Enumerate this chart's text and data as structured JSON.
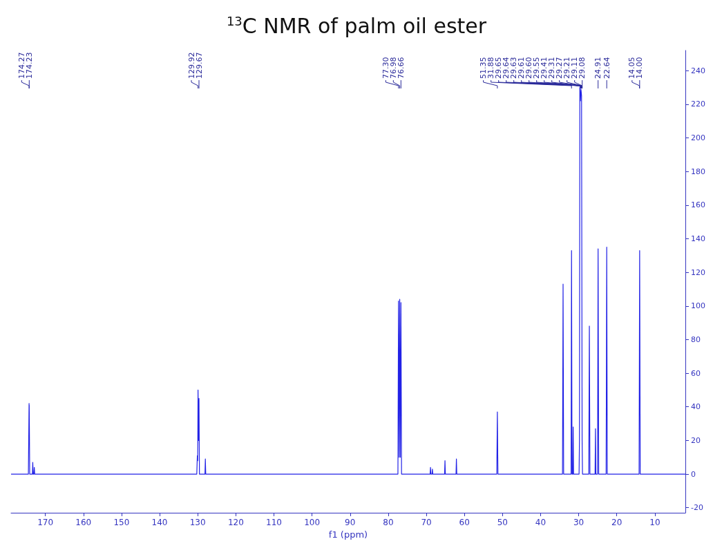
{
  "chart_data": {
    "type": "line",
    "title": "$^{13}$C NMR of palm oil ester",
    "xlabel": "f1 (ppm)",
    "color": "#2222e6",
    "x": [
      179,
      174.45,
      174.27,
      174.25,
      174.23,
      174.1,
      173.4,
      173.3,
      173.2,
      173.0,
      172.9,
      172.8,
      130.25,
      130.1,
      130.0,
      129.92,
      129.8,
      129.67,
      129.55,
      128.1,
      128.0,
      127.9,
      77.45,
      77.3,
      77.14,
      76.98,
      76.82,
      76.66,
      76.5,
      69.0,
      68.9,
      68.8,
      68.5,
      68.4,
      68.3,
      65.2,
      65.1,
      65.0,
      62.2,
      62.1,
      62.0,
      51.5,
      51.35,
      51.2,
      34.25,
      34.1,
      33.95,
      32.0,
      31.88,
      31.75,
      31.55,
      31.45,
      31.35,
      29.9,
      29.8,
      29.7,
      29.55,
      29.4,
      29.25,
      29.1,
      29.0,
      27.35,
      27.2,
      27.05,
      25.7,
      25.6,
      25.5,
      25.05,
      24.91,
      24.75,
      22.8,
      22.64,
      22.5,
      14.15,
      14.0,
      13.85,
      2
    ],
    "values": [
      0,
      0,
      42,
      30,
      41,
      0,
      0,
      7,
      0,
      0,
      4,
      0,
      0,
      11,
      8,
      50,
      20,
      45,
      0,
      0,
      9,
      0,
      0,
      103,
      10,
      104,
      10,
      102,
      0,
      0,
      4,
      0,
      0,
      3,
      0,
      0,
      8,
      0,
      0,
      9,
      0,
      0,
      37,
      0,
      0,
      113,
      0,
      0,
      133,
      0,
      0,
      28,
      0,
      0,
      20,
      230,
      222,
      229,
      225,
      20,
      0,
      0,
      88,
      0,
      0,
      27,
      0,
      0,
      134,
      0,
      0,
      135,
      0,
      0,
      133,
      0,
      0
    ],
    "xlim": [
      179,
      2
    ],
    "xticks": [
      170,
      160,
      150,
      140,
      130,
      120,
      110,
      100,
      90,
      80,
      70,
      60,
      50,
      40,
      30,
      20,
      10
    ],
    "ylim": [
      -23,
      252
    ],
    "yticks": [
      -20,
      0,
      20,
      40,
      60,
      80,
      100,
      120,
      140,
      160,
      180,
      200,
      220,
      240
    ],
    "grid": false,
    "marker": "none",
    "line_style": "solid",
    "annotations": [
      {
        "text": "174.27",
        "x": 174.27
      },
      {
        "text": "174.23",
        "x": 174.23
      },
      {
        "text": "129.92",
        "x": 129.92
      },
      {
        "text": "129.67",
        "x": 129.67
      },
      {
        "text": "77.30",
        "x": 77.3
      },
      {
        "text": "76.98",
        "x": 76.98
      },
      {
        "text": "76.66",
        "x": 76.66
      },
      {
        "text": "51.35",
        "x": 51.35
      },
      {
        "text": "31.88",
        "x": 31.88
      },
      {
        "text": "29.65",
        "x": 29.65
      },
      {
        "text": "29.64",
        "x": 29.64
      },
      {
        "text": "29.63",
        "x": 29.63
      },
      {
        "text": "29.61",
        "x": 29.61
      },
      {
        "text": "29.60",
        "x": 29.6
      },
      {
        "text": "29.55",
        "x": 29.55
      },
      {
        "text": "29.41",
        "x": 29.41
      },
      {
        "text": "29.31",
        "x": 29.31
      },
      {
        "text": "29.27",
        "x": 29.27
      },
      {
        "text": "29.21",
        "x": 29.21
      },
      {
        "text": "29.11",
        "x": 29.11
      },
      {
        "text": "29.08",
        "x": 29.08
      },
      {
        "text": "24.91",
        "x": 24.91
      },
      {
        "text": "22.64",
        "x": 22.64
      },
      {
        "text": "14.05",
        "x": 14.05
      },
      {
        "text": "14.00",
        "x": 14.0
      }
    ]
  }
}
